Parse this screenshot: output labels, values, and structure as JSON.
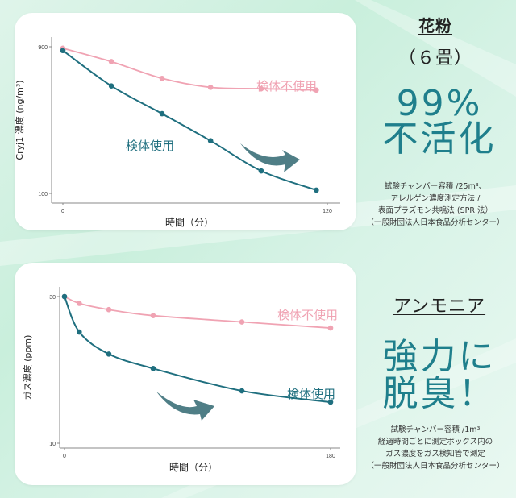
{
  "panel1": {
    "title": "花粉",
    "subtitle": "（６畳）",
    "headline": [
      "99%",
      "不活化"
    ],
    "notes": [
      "試験チャンバー容積 /25m³、",
      "アレルゲン濃度測定方法 /",
      "表面プラズモン共鳴法 (SPR 法）",
      "（一般財団法人日本食品分析センター）"
    ],
    "colors": {
      "unused": "#f0a3b3",
      "used": "#1f6f7f",
      "arrow": "#4f7e86",
      "headline": "#1f7f8c"
    }
  },
  "panel2": {
    "title": "アンモニア",
    "headline": [
      "強力に",
      "脱臭！"
    ],
    "notes": [
      "試験チャンバー容積 /1m³",
      "経過時間ごとに測定ボックス内の",
      "ガス濃度をガス検知管で測定",
      "（一般財団法人日本食品分析センター）"
    ]
  },
  "chart_data": [
    {
      "type": "scatter",
      "xlabel": "時間（分）",
      "ylabel": "Cryj1 濃度 (ng/m³)",
      "yscale": "log",
      "xlim": [
        0,
        120
      ],
      "ylim": [
        100,
        900
      ],
      "x_ticks": [
        "0",
        "120"
      ],
      "y_ticks": [
        "900",
        "100"
      ],
      "series": [
        {
          "name": "検体不使用",
          "x": [
            0,
            22,
            45,
            67,
            90,
            115
          ],
          "y": [
            880,
            720,
            560,
            490,
            480,
            470
          ]
        },
        {
          "name": "検体使用",
          "x": [
            0,
            22,
            45,
            67,
            90,
            115
          ],
          "y": [
            850,
            500,
            330,
            220,
            140,
            105
          ]
        }
      ]
    },
    {
      "type": "scatter",
      "xlabel": "時間（分）",
      "ylabel": "ガス濃度 (ppm)",
      "yscale": "log",
      "xlim": [
        0,
        180
      ],
      "ylim": [
        10,
        30
      ],
      "x_ticks": [
        "0",
        "180"
      ],
      "y_ticks": [
        "30",
        "10"
      ],
      "series": [
        {
          "name": "検体不使用",
          "x": [
            0,
            10,
            30,
            60,
            120,
            180
          ],
          "y": [
            30,
            28.5,
            27.2,
            26,
            24.8,
            23.7
          ]
        },
        {
          "name": "検体使用",
          "x": [
            0,
            10,
            30,
            60,
            120,
            180
          ],
          "y": [
            30,
            23,
            19.5,
            17.5,
            14.8,
            13.6
          ]
        }
      ]
    }
  ]
}
